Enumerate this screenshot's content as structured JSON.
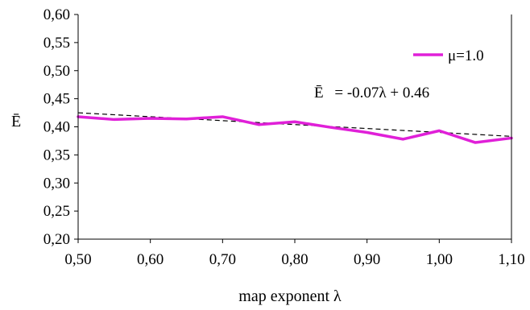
{
  "chart_data": {
    "type": "line",
    "xlabel": "map exponent λ",
    "ylabel": "Ē",
    "xlim": [
      0.5,
      1.1
    ],
    "ylim": [
      0.2,
      0.6
    ],
    "x_ticks": [
      "0,50",
      "0,60",
      "0,70",
      "0,80",
      "0,90",
      "1,00",
      "1,10"
    ],
    "y_ticks": [
      "0,20",
      "0,25",
      "0,30",
      "0,35",
      "0,40",
      "0,45",
      "0,50",
      "0,55",
      "0,60"
    ],
    "x_tick_values": [
      0.5,
      0.6,
      0.7,
      0.8,
      0.9,
      1.0,
      1.1
    ],
    "y_tick_values": [
      0.2,
      0.25,
      0.3,
      0.35,
      0.4,
      0.45,
      0.5,
      0.55,
      0.6
    ],
    "grid": false,
    "legend_position": "top-right",
    "series": [
      {
        "name": "μ=1.0",
        "color": "#e020d8",
        "x": [
          0.5,
          0.55,
          0.6,
          0.65,
          0.7,
          0.75,
          0.8,
          0.85,
          0.9,
          0.95,
          1.0,
          1.05,
          1.1
        ],
        "values": [
          0.418,
          0.413,
          0.415,
          0.414,
          0.418,
          0.404,
          0.409,
          0.399,
          0.39,
          0.378,
          0.393,
          0.372,
          0.38
        ]
      }
    ],
    "trendline": {
      "style": "dashed",
      "color": "#000000",
      "slope": -0.07,
      "intercept": 0.46
    },
    "annotation": {
      "lhs": "Ē",
      "rhs": "= -0.07λ + 0.46"
    }
  }
}
